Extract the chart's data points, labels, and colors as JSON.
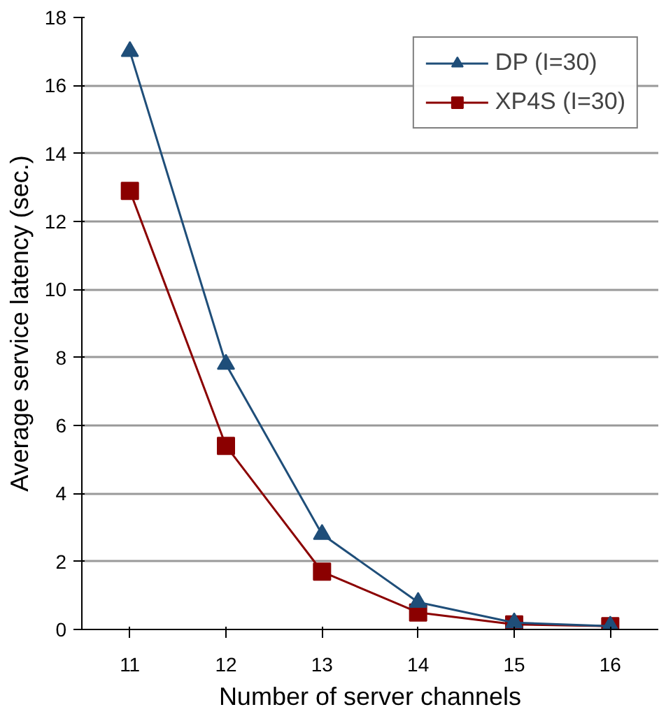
{
  "chart_data": {
    "type": "line",
    "xlabel": "Number of server channels",
    "ylabel": "Average service latency (sec.)",
    "categories": [
      "11",
      "12",
      "13",
      "14",
      "15",
      "16"
    ],
    "series": [
      {
        "name": "DP (I=30)",
        "color": "#1f4e79",
        "values": [
          17,
          7.8,
          2.8,
          0.8,
          0.2,
          0.1
        ],
        "marker": "triangle"
      },
      {
        "name": "XP4S (I=30)",
        "color": "#8b0000",
        "values": [
          12.9,
          5.4,
          1.7,
          0.5,
          0.15,
          0.1
        ],
        "marker": "square"
      }
    ],
    "ylim": [
      0,
      18
    ],
    "yticks": [
      0,
      2,
      4,
      6,
      8,
      10,
      12,
      14,
      16,
      18
    ],
    "grid": "y",
    "legend": "top right",
    "line_style": "solid"
  }
}
